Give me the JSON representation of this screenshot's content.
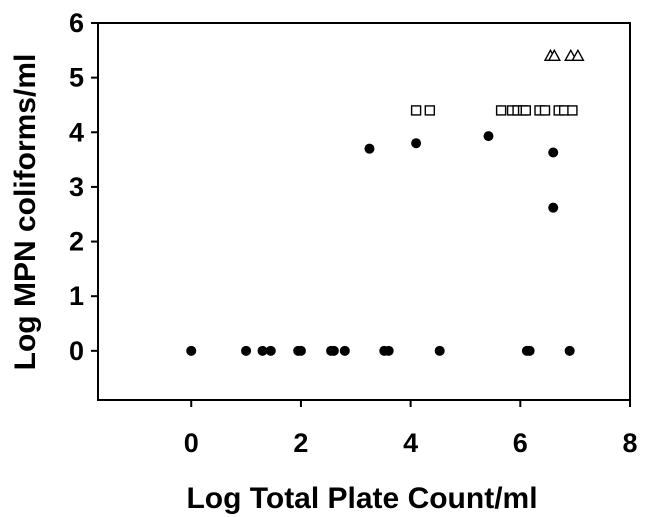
{
  "chart_data": {
    "type": "scatter",
    "title": "",
    "xlabel": "Log Total Plate Count/ml",
    "ylabel": "Log MPN coliforms/ml",
    "xlim": [
      -1.7,
      8
    ],
    "ylim": [
      -0.9,
      6
    ],
    "xticks": [
      "0",
      "2",
      "4",
      "6",
      "8"
    ],
    "yticks": [
      "0",
      "1",
      "2",
      "3",
      "4",
      "5",
      "6"
    ],
    "grid": false,
    "legend": "none",
    "series": [
      {
        "marker": "filled-circle",
        "color": "#000000",
        "x": [
          0,
          1.0,
          1.3,
          1.45,
          1.95,
          2.0,
          2.55,
          2.6,
          2.8,
          3.52,
          3.6,
          4.53,
          6.12,
          6.17,
          6.9,
          3.25,
          4.1,
          5.42,
          6.6,
          6.6
        ],
        "y": [
          0,
          0,
          0,
          0,
          0,
          0,
          0,
          0,
          0,
          0,
          0,
          0,
          0,
          0,
          0,
          3.7,
          3.8,
          3.93,
          3.63,
          2.62
        ]
      },
      {
        "marker": "open-square",
        "color": "#000000",
        "x": [
          4.1,
          4.35,
          5.65,
          5.85,
          5.95,
          6.05,
          6.1,
          6.35,
          6.45,
          6.7,
          6.8,
          6.95
        ],
        "y": [
          4.4,
          4.4,
          4.4,
          4.4,
          4.4,
          4.4,
          4.4,
          4.4,
          4.4,
          4.4,
          4.4,
          4.4
        ]
      },
      {
        "marker": "open-triangle",
        "color": "#000000",
        "x": [
          6.55,
          6.62,
          6.92,
          7.05
        ],
        "y": [
          5.4,
          5.4,
          5.4,
          5.4
        ]
      }
    ]
  }
}
